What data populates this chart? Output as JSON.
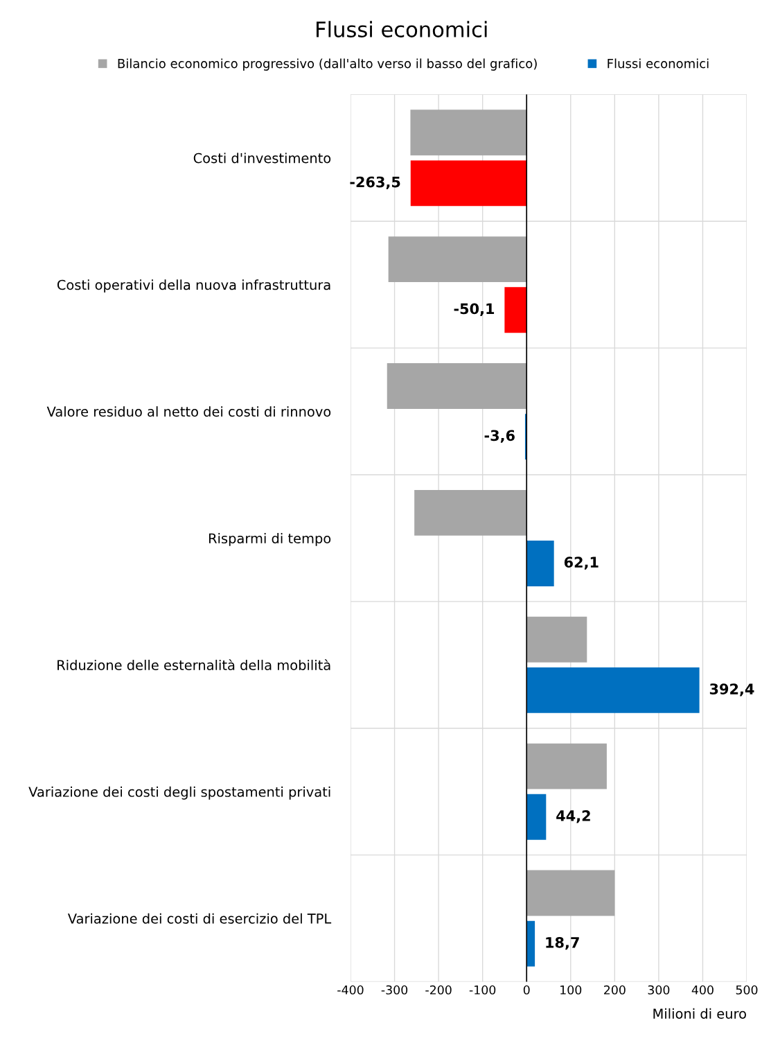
{
  "chart_data": {
    "type": "bar",
    "orientation": "horizontal",
    "title": "Flussi economici",
    "xlabel": "Milioni di euro",
    "categories": [
      "Costi d'investimento",
      "Costi operativi della nuova infrastruttura",
      "Valore residuo al netto dei costi di rinnovo",
      "Risparmi di tempo",
      "Riduzione delle esternalità della mobilità",
      "Variazione dei costi degli spostamenti privati",
      "Variazione dei costi di esercizio del TPL"
    ],
    "series": [
      {
        "name": "Bilancio economico progressivo (dall'alto verso il basso del grafico)",
        "color": "#a6a6a6",
        "values": [
          -264,
          -314,
          -317,
          -255,
          137,
          182,
          200
        ]
      },
      {
        "name": "Flussi economici",
        "color": "#0070c0",
        "colors": [
          "#ff0000",
          "#ff0000",
          "#0070c0",
          "#0070c0",
          "#0070c0",
          "#0070c0",
          "#0070c0"
        ],
        "values": [
          -263.5,
          -50.1,
          -3.6,
          62.1,
          392.4,
          44.2,
          18.7
        ],
        "value_labels": [
          "-263,5",
          "-50,1",
          "-3,6",
          "62,1",
          "392,4",
          "44,2",
          "18,7"
        ]
      }
    ],
    "xlim": [
      -400,
      500
    ],
    "xticks": [
      -400,
      -300,
      -200,
      -100,
      0,
      100,
      200,
      300,
      400,
      500
    ],
    "ref_lines": [
      {
        "axis": "x",
        "value": 0,
        "color": "#000000"
      }
    ],
    "grid": true,
    "legend": "top"
  }
}
